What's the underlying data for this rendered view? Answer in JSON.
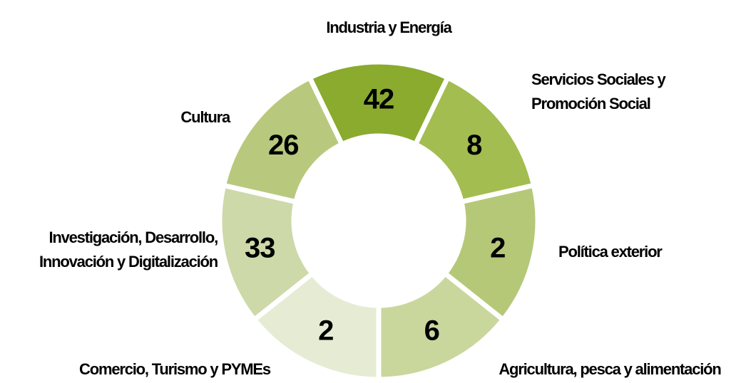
{
  "chart_data": {
    "type": "donut",
    "categories": [
      [
        "Industria y Energía"
      ],
      [
        "Servicios Sociales y",
        "Promoción Social"
      ],
      [
        "Política exterior"
      ],
      [
        "Agricultura, pesca y alimentación"
      ],
      [
        "Comercio, Turismo y PYMEs"
      ],
      [
        "Investigación, Desarrollo,",
        "Innovación y Digitalización"
      ],
      [
        "Cultura"
      ]
    ],
    "values": [
      42,
      8,
      2,
      6,
      2,
      33,
      26
    ],
    "colors": [
      "#8aab2e",
      "#a3bd50",
      "#b5c878",
      "#c9d79d",
      "#e6ecd4",
      "#cdd9a8",
      "#b8c97e"
    ]
  }
}
